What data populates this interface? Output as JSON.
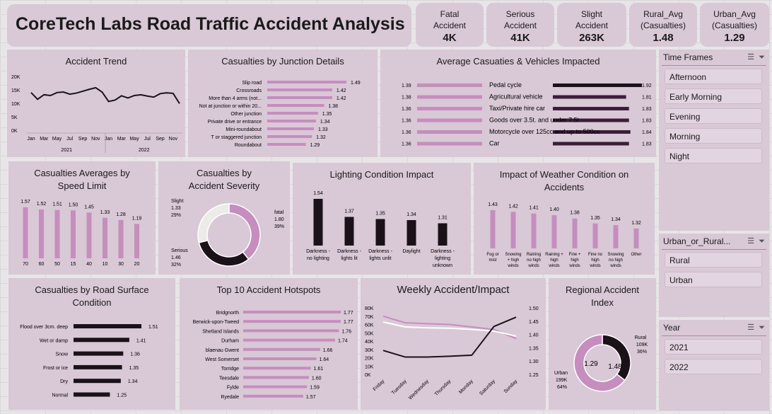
{
  "title": "CoreTech Labs Road Traffic Accident Analysis",
  "kpis": [
    {
      "label": "Fatal Accident",
      "value": "4K"
    },
    {
      "label": "Serious Accident",
      "value": "41K"
    },
    {
      "label": "Slight Accident",
      "value": "263K"
    },
    {
      "label": "Rural_Avg (Casualties)",
      "value": "1.48"
    },
    {
      "label": "Urban_Avg (Casualties)",
      "value": "1.29"
    }
  ],
  "panels": {
    "trend": "Accident Trend",
    "junction": "Casualties by Junction Details",
    "vehicles": "Average Casuaties & Vehicles Impacted",
    "speed": "Casualties Averages by Speed Limit",
    "severity": "Casualties by Accident Severity",
    "lighting": "Lighting Condition Impact",
    "weather": "Impact of Weather Condition on Accidents",
    "road": "Casualties by Road Surface Condition",
    "hotspots": "Top 10 Accident Hotspots",
    "weekly": "Weekly Accident/Impact",
    "regional": "Regional Accident Index"
  },
  "slicers": {
    "timeframes": {
      "title": "Time Frames",
      "items": [
        "Afternoon",
        "Early Morning",
        "Evening",
        "Morning",
        "Night"
      ]
    },
    "urban": {
      "title": "Urban_or_Rural...",
      "items": [
        "Rural",
        "Urban"
      ]
    },
    "year": {
      "title": "Year",
      "items": [
        "2021",
        "2022"
      ]
    }
  },
  "colors": {
    "pink": "#c58ebe",
    "dark": "#1a1218",
    "purple": "#3a1e38",
    "panel": "#d9c8d6"
  },
  "chart_data": [
    {
      "id": "trend",
      "type": "line",
      "title": "Accident Trend",
      "x": [
        "Jan",
        "Feb",
        "Mar",
        "Apr",
        "May",
        "Jun",
        "Jul",
        "Aug",
        "Sep",
        "Oct",
        "Nov",
        "Dec",
        "Jan",
        "Feb",
        "Mar",
        "Apr",
        "May",
        "Jun",
        "Jul",
        "Aug",
        "Sep",
        "Oct",
        "Nov",
        "Dec"
      ],
      "x_tick_labels": [
        "Jan",
        "Mar",
        "May",
        "Jul",
        "Sep",
        "Nov",
        "Jan",
        "Mar",
        "May",
        "Jul",
        "Sep",
        "Nov"
      ],
      "years": [
        "2021",
        "2022"
      ],
      "values": [
        14000,
        11500,
        13200,
        12900,
        14000,
        14200,
        13400,
        13800,
        14500,
        15200,
        15800,
        14200,
        10700,
        11200,
        12800,
        12000,
        12900,
        13200,
        12700,
        12300,
        13600,
        13900,
        13700,
        9900
      ],
      "yticks": [
        "20K",
        "15K",
        "10K",
        "5K",
        "0K"
      ],
      "ylim": [
        0,
        20000
      ]
    },
    {
      "id": "junction",
      "type": "bar",
      "title": "Casualties by Junction Details",
      "categories": [
        "Slip road",
        "Crossroads",
        "More than 4 arms (not...",
        "Not at junction or within 20...",
        "Other junction",
        "Private drive or entrance",
        "Mini-roundabout",
        "T or staggered junction",
        "Roundabout"
      ],
      "values": [
        1.49,
        1.42,
        1.42,
        1.38,
        1.35,
        1.34,
        1.33,
        1.32,
        1.29
      ]
    },
    {
      "id": "vehicles",
      "type": "bar",
      "title": "Average Casuaties & Vehicles Impacted",
      "categories": [
        "Pedal cycle",
        "Agricultural vehicle",
        "Taxi/Private hire car",
        "Goods over 3.5t. and under 7.5t",
        "Motorcycle over 125cc and up to 500cc",
        "Car"
      ],
      "series": [
        {
          "values": [
            1.39,
            1.38,
            1.36,
            1.36,
            1.36,
            1.36
          ]
        },
        {
          "values": [
            1.92,
            1.81,
            1.83,
            1.83,
            1.84,
            1.83
          ]
        }
      ]
    },
    {
      "id": "speed",
      "type": "bar",
      "title": "Casualties Averages by Speed Limit",
      "categories": [
        "70",
        "60",
        "50",
        "15",
        "40",
        "10",
        "30",
        "20"
      ],
      "values": [
        1.57,
        1.52,
        1.51,
        1.5,
        1.45,
        1.33,
        1.28,
        1.19
      ]
    },
    {
      "id": "severity",
      "type": "pie",
      "title": "Casualties by Accident Severity",
      "categories": [
        "fatal",
        "Serious",
        "Slight"
      ],
      "values": [
        1.8,
        1.46,
        1.33
      ],
      "percent": [
        "39%",
        "32%",
        "29%"
      ],
      "value_labels": [
        "1.80",
        "1.46",
        "1.33"
      ]
    },
    {
      "id": "lighting",
      "type": "bar",
      "title": "Lighting Condition Impact",
      "categories": [
        "Darkness - no lighting",
        "Darkness - lights lit",
        "Darkness - lights unlit",
        "Daylight",
        "Darkness - lighting unknown"
      ],
      "values": [
        1.54,
        1.37,
        1.35,
        1.34,
        1.31
      ]
    },
    {
      "id": "weather",
      "type": "bar",
      "title": "Impact of Weather Condition on Accidents",
      "categories": [
        "Fog or mist",
        "Snowing + high winds",
        "Raining no high winds",
        "Raining + high winds",
        "Fine + high winds",
        "Fine no high winds",
        "Snowing no high winds",
        "Other"
      ],
      "values": [
        1.43,
        1.42,
        1.41,
        1.4,
        1.38,
        1.35,
        1.34,
        1.32
      ]
    },
    {
      "id": "road",
      "type": "bar",
      "title": "Casualties by Road Surface Condition",
      "categories": [
        "Flood over 3cm. deep",
        "Wet or damp",
        "Snow",
        "Frost or ice",
        "Dry",
        "Normal"
      ],
      "values": [
        1.51,
        1.41,
        1.36,
        1.35,
        1.34,
        1.25
      ]
    },
    {
      "id": "hotspots",
      "type": "bar",
      "title": "Top 10 Accident Hotspots",
      "categories": [
        "Bridgnorth",
        "Berwick-upon-Tweed",
        "Shetland Islands",
        "Durham",
        "blaenau Gwent",
        "West Somerset",
        "Torridge",
        "Teesdale",
        "Fylde",
        "Ryedale"
      ],
      "values": [
        1.77,
        1.77,
        1.76,
        1.74,
        1.66,
        1.64,
        1.61,
        1.6,
        1.59,
        1.57
      ]
    },
    {
      "id": "weekly",
      "type": "line",
      "title": "Weekly Accident/Impact",
      "x": [
        "Friday",
        "Tuesday",
        "Wednesday",
        "Thursday",
        "Monday",
        "Saturday",
        "Sunday"
      ],
      "series": [
        {
          "axis": "left",
          "values": [
            70000,
            62000,
            61000,
            60000,
            57000,
            54000,
            43000
          ]
        },
        {
          "axis": "left",
          "values": [
            63000,
            57000,
            56000,
            55500,
            54000,
            52000,
            46000
          ]
        },
        {
          "axis": "right",
          "values": [
            1.34,
            1.315,
            1.315,
            1.318,
            1.322,
            1.43,
            1.465
          ]
        }
      ],
      "y_left_ticks": [
        "80K",
        "70K",
        "60K",
        "50K",
        "40K",
        "30K",
        "20K",
        "10K",
        "0K"
      ],
      "y_right_ticks": [
        "1.50",
        "1.45",
        "1.40",
        "1.35",
        "1.30",
        "1.25"
      ],
      "ylim_left": [
        0,
        80000
      ],
      "ylim_right": [
        1.25,
        1.5
      ]
    },
    {
      "id": "regional",
      "type": "pie",
      "title": "Regional Accident Index",
      "categories": [
        "Rural",
        "Urban"
      ],
      "values": [
        109000,
        199000
      ],
      "value_labels": [
        "109K",
        "199K"
      ],
      "percent": [
        "36%",
        "64%"
      ],
      "inner_labels": [
        "1.48",
        "1.29"
      ]
    }
  ]
}
